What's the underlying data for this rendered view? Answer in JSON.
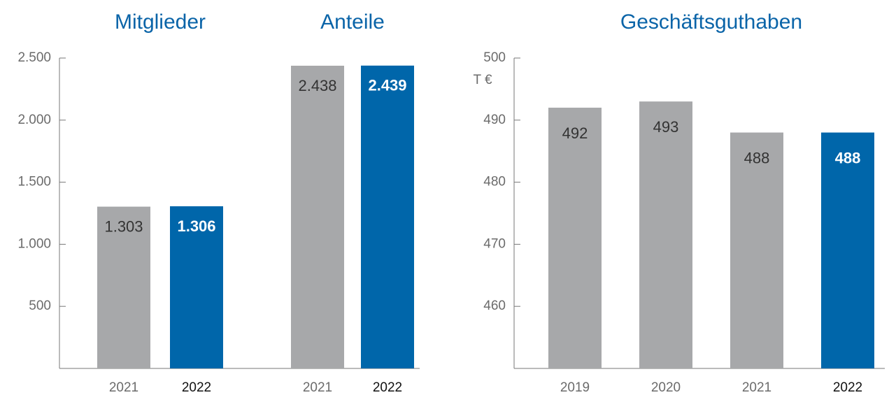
{
  "chart_data": [
    {
      "type": "bar",
      "groups": [
        {
          "title": "Mitglieder",
          "categories": [
            "2021",
            "2022"
          ],
          "values": [
            1303,
            1306
          ],
          "value_labels": [
            "1.303",
            "1.306"
          ]
        },
        {
          "title": "Anteile",
          "categories": [
            "2021",
            "2022"
          ],
          "values": [
            2438,
            2439
          ],
          "value_labels": [
            "2.438",
            "2.439"
          ]
        }
      ],
      "colors": [
        "#a7a8aa",
        "#0066aa"
      ],
      "ylim": [
        0,
        2500
      ],
      "yticks": [
        {
          "value": 500,
          "label": "500"
        },
        {
          "value": 1000,
          "label": "1.000"
        },
        {
          "value": 1500,
          "label": "1.500"
        },
        {
          "value": 2000,
          "label": "2.000"
        },
        {
          "value": 2500,
          "label": "2.500"
        }
      ]
    },
    {
      "type": "bar",
      "groups": [
        {
          "title": "Geschäftsguthaben",
          "categories": [
            "2019",
            "2020",
            "2021",
            "2022"
          ],
          "values": [
            492,
            493,
            488,
            488
          ]
        }
      ],
      "colors": [
        "#a7a8aa",
        "#a7a8aa",
        "#a7a8aa",
        "#0066aa"
      ],
      "unit": "T €",
      "ylim": [
        450,
        500
      ],
      "yticks": [
        460,
        470,
        480,
        490,
        500
      ]
    }
  ]
}
